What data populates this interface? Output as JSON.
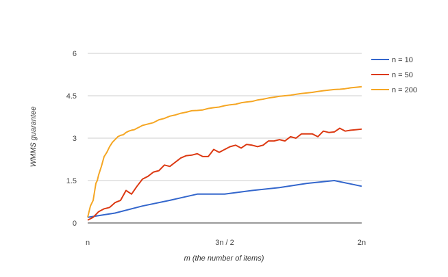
{
  "chart_data": {
    "type": "line",
    "title": "",
    "xlabel": "m (the number of items)",
    "ylabel": "WMMS guarantee",
    "x_range": [
      0,
      1
    ],
    "ylim": [
      0,
      6
    ],
    "y_ticks": [
      0,
      1.5,
      3,
      4.5,
      6
    ],
    "y_tick_labels": [
      "0",
      "1.5",
      "3",
      "4.5",
      "6"
    ],
    "x_ticks": [
      0,
      0.5,
      1
    ],
    "x_tick_labels": [
      "n",
      "3n / 2",
      "2n"
    ],
    "x_unit_note": "x = (m - n) / n, i.e. position between n and 2n",
    "grid": "horizontal",
    "legend_position": "right",
    "series": [
      {
        "name": "n = 10",
        "color": "#3366cc",
        "x": [
          0,
          0.1,
          0.2,
          0.3,
          0.4,
          0.5,
          0.6,
          0.7,
          0.8,
          0.9,
          1.0
        ],
        "y": [
          0.2,
          0.35,
          0.6,
          0.8,
          1.02,
          1.02,
          1.15,
          1.25,
          1.4,
          1.5,
          1.3
        ]
      },
      {
        "name": "n = 50",
        "color": "#dc3912",
        "x": [
          0,
          0.02,
          0.04,
          0.06,
          0.08,
          0.1,
          0.12,
          0.14,
          0.16,
          0.18,
          0.2,
          0.22,
          0.24,
          0.26,
          0.28,
          0.3,
          0.32,
          0.34,
          0.36,
          0.38,
          0.4,
          0.42,
          0.44,
          0.46,
          0.48,
          0.5,
          0.52,
          0.54,
          0.56,
          0.58,
          0.6,
          0.62,
          0.64,
          0.66,
          0.68,
          0.7,
          0.72,
          0.74,
          0.76,
          0.78,
          0.8,
          0.82,
          0.84,
          0.86,
          0.88,
          0.9,
          0.92,
          0.94,
          0.96,
          0.98,
          1.0
        ],
        "y": [
          0.1,
          0.2,
          0.4,
          0.5,
          0.55,
          0.72,
          0.8,
          1.15,
          1.02,
          1.3,
          1.55,
          1.65,
          1.8,
          1.85,
          2.05,
          2.0,
          2.15,
          2.3,
          2.38,
          2.4,
          2.45,
          2.35,
          2.35,
          2.6,
          2.5,
          2.6,
          2.7,
          2.75,
          2.65,
          2.78,
          2.75,
          2.7,
          2.75,
          2.9,
          2.9,
          2.95,
          2.9,
          3.05,
          3.0,
          3.15,
          3.15,
          3.15,
          3.05,
          3.25,
          3.2,
          3.22,
          3.35,
          3.25,
          3.28,
          3.3,
          3.32
        ]
      },
      {
        "name": "n = 200",
        "color": "#f5a623",
        "x": [
          0,
          0.01,
          0.02,
          0.03,
          0.035,
          0.04,
          0.05,
          0.06,
          0.07,
          0.08,
          0.09,
          0.1,
          0.11,
          0.12,
          0.13,
          0.14,
          0.15,
          0.16,
          0.17,
          0.18,
          0.19,
          0.2,
          0.22,
          0.24,
          0.26,
          0.28,
          0.3,
          0.32,
          0.34,
          0.36,
          0.38,
          0.4,
          0.42,
          0.44,
          0.46,
          0.48,
          0.5,
          0.52,
          0.54,
          0.56,
          0.58,
          0.6,
          0.62,
          0.64,
          0.66,
          0.68,
          0.7,
          0.72,
          0.74,
          0.76,
          0.78,
          0.8,
          0.82,
          0.84,
          0.86,
          0.88,
          0.9,
          0.92,
          0.94,
          0.96,
          0.98,
          1.0
        ],
        "y": [
          0.2,
          0.6,
          0.8,
          1.4,
          1.5,
          1.7,
          2.0,
          2.35,
          2.5,
          2.7,
          2.85,
          2.95,
          3.05,
          3.1,
          3.12,
          3.2,
          3.25,
          3.28,
          3.3,
          3.35,
          3.4,
          3.45,
          3.5,
          3.55,
          3.65,
          3.7,
          3.78,
          3.82,
          3.88,
          3.92,
          3.97,
          3.98,
          4.0,
          4.05,
          4.08,
          4.1,
          4.15,
          4.18,
          4.2,
          4.25,
          4.28,
          4.3,
          4.35,
          4.38,
          4.42,
          4.45,
          4.48,
          4.5,
          4.52,
          4.55,
          4.58,
          4.6,
          4.62,
          4.65,
          4.68,
          4.7,
          4.72,
          4.73,
          4.75,
          4.78,
          4.8,
          4.82
        ]
      }
    ]
  }
}
